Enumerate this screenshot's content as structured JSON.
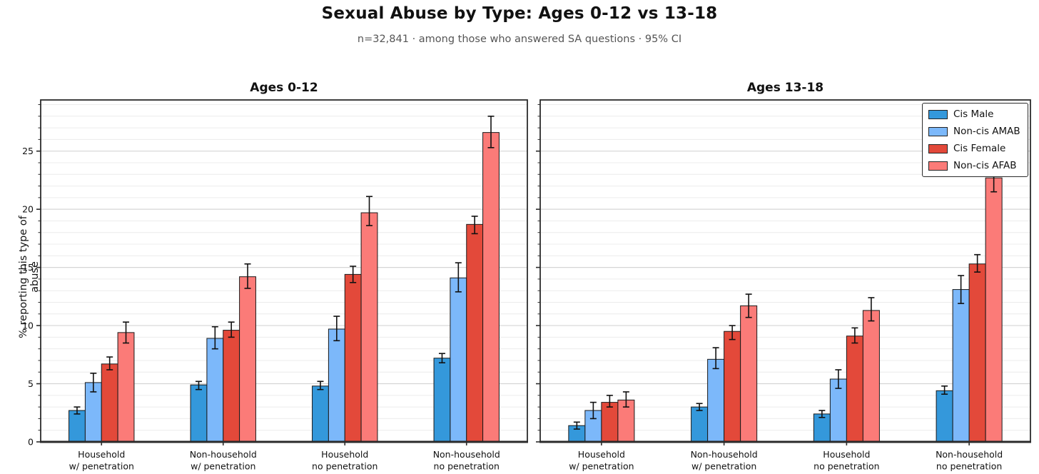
{
  "header": {
    "title": "Sexual Abuse by Type: Ages 0-12 vs 13-18",
    "subtitle": "n=32,841 · among those who answered SA questions · 95% CI"
  },
  "axes": {
    "ylabel": "% reporting this type of abuse",
    "yticks": [
      0,
      5,
      10,
      15,
      20,
      25
    ],
    "ylim": [
      0,
      29.4
    ],
    "minor_grid_step": 1,
    "major_grid_step": 5,
    "grid": "horizontal, minor light gray every 1, major gray every 5",
    "spine_color": "#2b2b2b",
    "major_grid_color": "#d5d5d5",
    "minor_grid_color": "#ececec"
  },
  "legend": {
    "position": "top-right of second panel",
    "entries": [
      {
        "label": "Cis Male",
        "color": "#3498db"
      },
      {
        "label": "Non-cis AMAB",
        "color": "#7cb8fa"
      },
      {
        "label": "Cis Female",
        "color": "#e3493a"
      },
      {
        "label": "Non-cis AFAB",
        "color": "#fb7b78"
      }
    ]
  },
  "chart_data": [
    {
      "type": "bar",
      "title": "Ages 0-12",
      "xlabel": "",
      "ylabel": "% reporting this type of abuse",
      "ylim": [
        0,
        29.4
      ],
      "categories": [
        "Household\nw/ penetration",
        "Non-household\nw/ penetration",
        "Household\nno penetration",
        "Non-household\nno penetration"
      ],
      "series": [
        {
          "name": "Cis Male",
          "color": "#3498db",
          "values": [
            2.7,
            4.9,
            4.8,
            7.2
          ],
          "ci_low": [
            2.4,
            4.5,
            4.5,
            6.8
          ],
          "ci_high": [
            3.0,
            5.2,
            5.2,
            7.6
          ]
        },
        {
          "name": "Non-cis AMAB",
          "color": "#7cb8fa",
          "values": [
            5.1,
            8.9,
            9.7,
            14.1
          ],
          "ci_low": [
            4.3,
            8.0,
            8.7,
            12.9
          ],
          "ci_high": [
            5.9,
            9.9,
            10.8,
            15.4
          ]
        },
        {
          "name": "Cis Female",
          "color": "#e3493a",
          "values": [
            6.7,
            9.6,
            14.4,
            18.7
          ],
          "ci_low": [
            6.2,
            9.0,
            13.7,
            17.9
          ],
          "ci_high": [
            7.3,
            10.3,
            15.1,
            19.4
          ]
        },
        {
          "name": "Non-cis AFAB",
          "color": "#fb7b78",
          "values": [
            9.4,
            14.2,
            19.7,
            26.6
          ],
          "ci_low": [
            8.5,
            13.2,
            18.6,
            25.3
          ],
          "ci_high": [
            10.3,
            15.3,
            21.1,
            28.0
          ]
        }
      ]
    },
    {
      "type": "bar",
      "title": "Ages 13-18",
      "xlabel": "",
      "ylabel": "",
      "ylim": [
        0,
        29.4
      ],
      "categories": [
        "Household\nw/ penetration",
        "Non-household\nw/ penetration",
        "Household\nno penetration",
        "Non-household\nno penetration"
      ],
      "series": [
        {
          "name": "Cis Male",
          "color": "#3498db",
          "values": [
            1.4,
            3.0,
            2.4,
            4.4
          ],
          "ci_low": [
            1.1,
            2.7,
            2.1,
            4.1
          ],
          "ci_high": [
            1.7,
            3.3,
            2.7,
            4.8
          ]
        },
        {
          "name": "Non-cis AMAB",
          "color": "#7cb8fa",
          "values": [
            2.7,
            7.1,
            5.4,
            13.1
          ],
          "ci_low": [
            2.0,
            6.3,
            4.6,
            11.9
          ],
          "ci_high": [
            3.4,
            8.1,
            6.2,
            14.3
          ]
        },
        {
          "name": "Cis Female",
          "color": "#e3493a",
          "values": [
            3.4,
            9.5,
            9.1,
            15.3
          ],
          "ci_low": [
            3.0,
            8.8,
            8.5,
            14.6
          ],
          "ci_high": [
            4.0,
            10.0,
            9.8,
            16.1
          ]
        },
        {
          "name": "Non-cis AFAB",
          "color": "#fb7b78",
          "values": [
            3.6,
            11.7,
            11.3,
            22.7
          ],
          "ci_low": [
            3.0,
            10.7,
            10.4,
            21.5
          ],
          "ci_high": [
            4.3,
            12.7,
            12.4,
            23.9
          ]
        }
      ]
    }
  ]
}
